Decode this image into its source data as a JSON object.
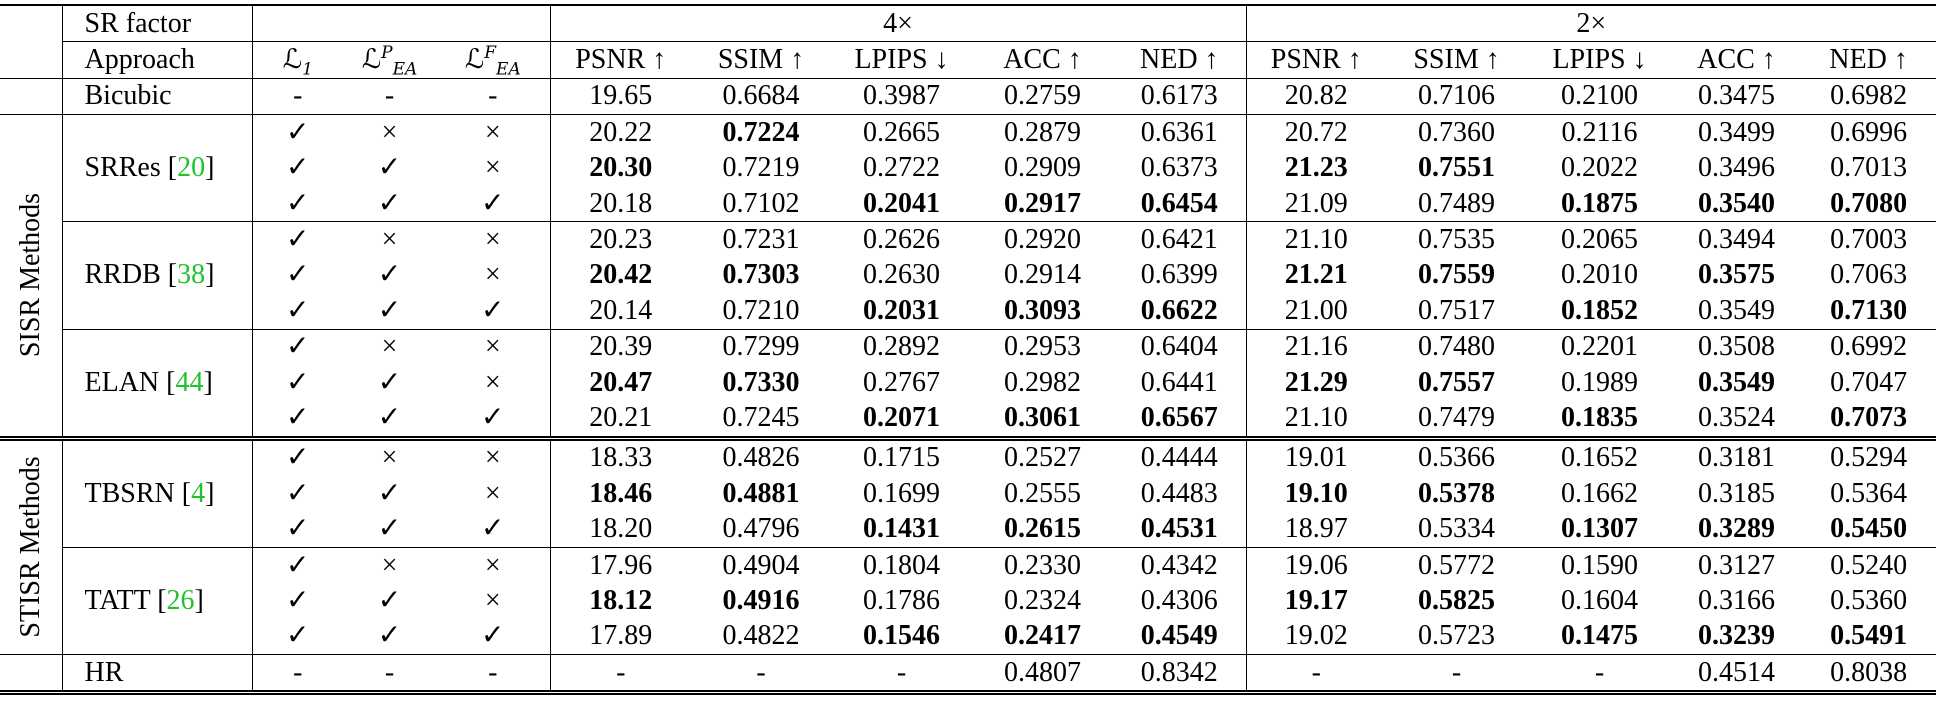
{
  "header": {
    "sr_factor": "SR factor",
    "approach": "Approach",
    "factor_4x": "4×",
    "factor_2x": "2×",
    "loss_l1": {
      "base": "ℒ",
      "sub": "1"
    },
    "loss_p": {
      "base": "ℒ",
      "sup": "P",
      "sub": "EA"
    },
    "loss_f": {
      "base": "ℒ",
      "sup": "F",
      "sub": "EA"
    },
    "metrics": [
      "PSNR ↑",
      "SSIM ↑",
      "LPIPS ↓",
      "ACC ↑",
      "NED ↑"
    ]
  },
  "symbols": {
    "check": "✓",
    "cross": "×",
    "dash": "-"
  },
  "bicubic": {
    "label": "Bicubic",
    "losses": [
      "-",
      "-",
      "-"
    ],
    "x4": [
      "19.65",
      "0.6684",
      "0.3987",
      "0.2759",
      "0.6173"
    ],
    "x2": [
      "20.82",
      "0.7106",
      "0.2100",
      "0.3475",
      "0.6982"
    ]
  },
  "groups": [
    {
      "label": "SISR Methods",
      "methods": [
        {
          "name": "SRRes",
          "cite": "20",
          "rows": [
            {
              "losses": [
                "✓",
                "×",
                "×"
              ],
              "x4": [
                "20.22",
                "0.7224",
                "0.2665",
                "0.2879",
                "0.6361"
              ],
              "x2": [
                "20.72",
                "0.7360",
                "0.2116",
                "0.3499",
                "0.6996"
              ]
            },
            {
              "losses": [
                "✓",
                "✓",
                "×"
              ],
              "x4": [
                "20.30",
                "0.7219",
                "0.2722",
                "0.2909",
                "0.6373"
              ],
              "x2": [
                "21.23",
                "0.7551",
                "0.2022",
                "0.3496",
                "0.7013"
              ]
            },
            {
              "losses": [
                "✓",
                "✓",
                "✓"
              ],
              "x4": [
                "20.18",
                "0.7102",
                "0.2041",
                "0.2917",
                "0.6454"
              ],
              "x2": [
                "21.09",
                "0.7489",
                "0.1875",
                "0.3540",
                "0.7080"
              ]
            }
          ]
        },
        {
          "name": "RRDB",
          "cite": "38",
          "rows": [
            {
              "losses": [
                "✓",
                "×",
                "×"
              ],
              "x4": [
                "20.23",
                "0.7231",
                "0.2626",
                "0.2920",
                "0.6421"
              ],
              "x2": [
                "21.10",
                "0.7535",
                "0.2065",
                "0.3494",
                "0.7003"
              ]
            },
            {
              "losses": [
                "✓",
                "✓",
                "×"
              ],
              "x4": [
                "20.42",
                "0.7303",
                "0.2630",
                "0.2914",
                "0.6399"
              ],
              "x2": [
                "21.21",
                "0.7559",
                "0.2010",
                "0.3575",
                "0.7063"
              ]
            },
            {
              "losses": [
                "✓",
                "✓",
                "✓"
              ],
              "x4": [
                "20.14",
                "0.7210",
                "0.2031",
                "0.3093",
                "0.6622"
              ],
              "x2": [
                "21.00",
                "0.7517",
                "0.1852",
                "0.3549",
                "0.7130"
              ]
            }
          ]
        },
        {
          "name": "ELAN",
          "cite": "44",
          "rows": [
            {
              "losses": [
                "✓",
                "×",
                "×"
              ],
              "x4": [
                "20.39",
                "0.7299",
                "0.2892",
                "0.2953",
                "0.6404"
              ],
              "x2": [
                "21.16",
                "0.7480",
                "0.2201",
                "0.3508",
                "0.6992"
              ]
            },
            {
              "losses": [
                "✓",
                "✓",
                "×"
              ],
              "x4": [
                "20.47",
                "0.7330",
                "0.2767",
                "0.2982",
                "0.6441"
              ],
              "x2": [
                "21.29",
                "0.7557",
                "0.1989",
                "0.3549",
                "0.7047"
              ]
            },
            {
              "losses": [
                "✓",
                "✓",
                "✓"
              ],
              "x4": [
                "20.21",
                "0.7245",
                "0.2071",
                "0.3061",
                "0.6567"
              ],
              "x2": [
                "21.10",
                "0.7479",
                "0.1835",
                "0.3524",
                "0.7073"
              ]
            }
          ]
        }
      ]
    },
    {
      "label": "STISR Methods",
      "methods": [
        {
          "name": "TBSRN",
          "cite": "4",
          "rows": [
            {
              "losses": [
                "✓",
                "×",
                "×"
              ],
              "x4": [
                "18.33",
                "0.4826",
                "0.1715",
                "0.2527",
                "0.4444"
              ],
              "x2": [
                "19.01",
                "0.5366",
                "0.1652",
                "0.3181",
                "0.5294"
              ]
            },
            {
              "losses": [
                "✓",
                "✓",
                "×"
              ],
              "x4": [
                "18.46",
                "0.4881",
                "0.1699",
                "0.2555",
                "0.4483"
              ],
              "x2": [
                "19.10",
                "0.5378",
                "0.1662",
                "0.3185",
                "0.5364"
              ]
            },
            {
              "losses": [
                "✓",
                "✓",
                "✓"
              ],
              "x4": [
                "18.20",
                "0.4796",
                "0.1431",
                "0.2615",
                "0.4531"
              ],
              "x2": [
                "18.97",
                "0.5334",
                "0.1307",
                "0.3289",
                "0.5450"
              ]
            }
          ]
        },
        {
          "name": "TATT",
          "cite": "26",
          "rows": [
            {
              "losses": [
                "✓",
                "×",
                "×"
              ],
              "x4": [
                "17.96",
                "0.4904",
                "0.1804",
                "0.2330",
                "0.4342"
              ],
              "x2": [
                "19.06",
                "0.5772",
                "0.1590",
                "0.3127",
                "0.5240"
              ]
            },
            {
              "losses": [
                "✓",
                "✓",
                "×"
              ],
              "x4": [
                "18.12",
                "0.4916",
                "0.1786",
                "0.2324",
                "0.4306"
              ],
              "x2": [
                "19.17",
                "0.5825",
                "0.1604",
                "0.3166",
                "0.5360"
              ]
            },
            {
              "losses": [
                "✓",
                "✓",
                "✓"
              ],
              "x4": [
                "17.89",
                "0.4822",
                "0.1546",
                "0.2417",
                "0.4549"
              ],
              "x2": [
                "19.02",
                "0.5723",
                "0.1475",
                "0.3239",
                "0.5491"
              ]
            }
          ]
        }
      ]
    }
  ],
  "hr": {
    "label": "HR",
    "losses": [
      "-",
      "-",
      "-"
    ],
    "x4": [
      "-",
      "-",
      "-",
      "0.4807",
      "0.8342"
    ],
    "x2": [
      "-",
      "-",
      "-",
      "0.4514",
      "0.8038"
    ]
  },
  "bold": {
    "SRRes": {
      "x4": [
        [
          0,
          1
        ],
        [
          1,
          0
        ],
        [
          2,
          2
        ],
        [
          2,
          3
        ],
        [
          2,
          4
        ]
      ],
      "x2": [
        [
          1,
          0
        ],
        [
          1,
          1
        ],
        [
          2,
          2
        ],
        [
          2,
          3
        ],
        [
          2,
          4
        ]
      ]
    },
    "RRDB": {
      "x4": [
        [
          1,
          0
        ],
        [
          1,
          1
        ],
        [
          2,
          2
        ],
        [
          2,
          3
        ],
        [
          2,
          4
        ]
      ],
      "x2": [
        [
          1,
          0
        ],
        [
          1,
          1
        ],
        [
          1,
          3
        ],
        [
          2,
          2
        ],
        [
          2,
          4
        ]
      ]
    },
    "ELAN": {
      "x4": [
        [
          1,
          0
        ],
        [
          1,
          1
        ],
        [
          2,
          2
        ],
        [
          2,
          3
        ],
        [
          2,
          4
        ]
      ],
      "x2": [
        [
          1,
          0
        ],
        [
          1,
          1
        ],
        [
          1,
          3
        ],
        [
          2,
          2
        ],
        [
          2,
          4
        ]
      ]
    },
    "TBSRN": {
      "x4": [
        [
          1,
          0
        ],
        [
          1,
          1
        ],
        [
          2,
          2
        ],
        [
          2,
          3
        ],
        [
          2,
          4
        ]
      ],
      "x2": [
        [
          1,
          0
        ],
        [
          1,
          1
        ],
        [
          2,
          2
        ],
        [
          2,
          3
        ],
        [
          2,
          4
        ]
      ]
    },
    "TATT": {
      "x4": [
        [
          1,
          0
        ],
        [
          1,
          1
        ],
        [
          2,
          2
        ],
        [
          2,
          3
        ],
        [
          2,
          4
        ]
      ],
      "x2": [
        [
          1,
          0
        ],
        [
          1,
          1
        ],
        [
          2,
          2
        ],
        [
          2,
          3
        ],
        [
          2,
          4
        ]
      ]
    }
  }
}
